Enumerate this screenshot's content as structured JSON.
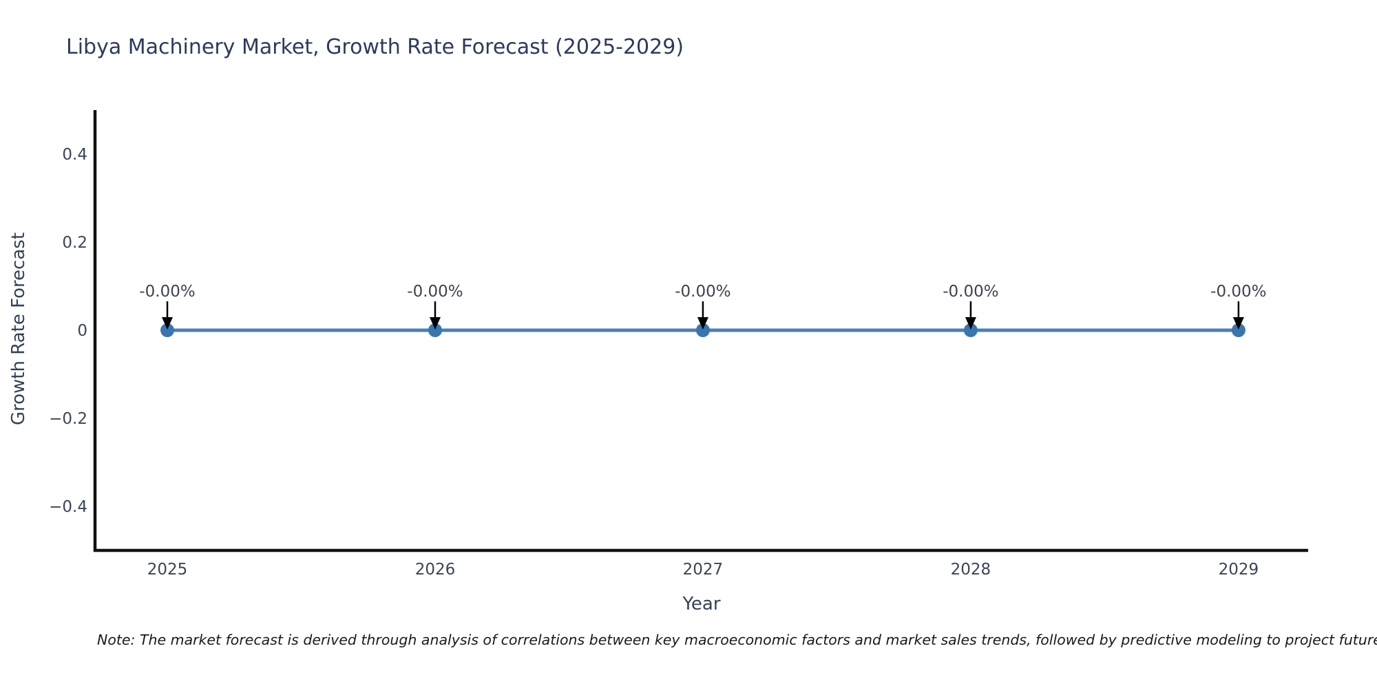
{
  "note": "Note: The market forecast is derived through analysis of correlations between key macroeconomic factors and market sales trends, followed by predictive modeling to project future sa",
  "chart_data": {
    "type": "line",
    "title": "Libya Machinery Market, Growth Rate Forecast (2025-2029)",
    "xlabel": "Year",
    "ylabel": "Growth Rate Forecast",
    "x": [
      2025,
      2026,
      2027,
      2028,
      2029
    ],
    "series": [
      {
        "name": "Growth Rate Forecast",
        "values": [
          0,
          0,
          0,
          0,
          0
        ]
      }
    ],
    "point_labels": [
      "-0.00%",
      "-0.00%",
      "-0.00%",
      "-0.00%",
      "-0.00%"
    ],
    "xtick_labels": [
      "2025",
      "2026",
      "2027",
      "2028",
      "2029"
    ],
    "ytick_values": [
      0.4,
      0.2,
      0,
      -0.2,
      -0.4
    ],
    "ytick_labels": [
      "0.4",
      "0.2",
      "0",
      "−0.2",
      "−0.4"
    ],
    "xlim": [
      2024.73,
      2029.26
    ],
    "ylim": [
      -0.5,
      0.5
    ],
    "grid": false,
    "legend": "none",
    "colors": {
      "line": "#4d80ae",
      "marker": "#3a76ae",
      "arrow": "#000000",
      "spine": "#111111",
      "axis_text": "#3a4557",
      "title_text": "#2c3a5e",
      "annotation_text": "#3c4350",
      "note_text": "#1a1a1a"
    }
  }
}
